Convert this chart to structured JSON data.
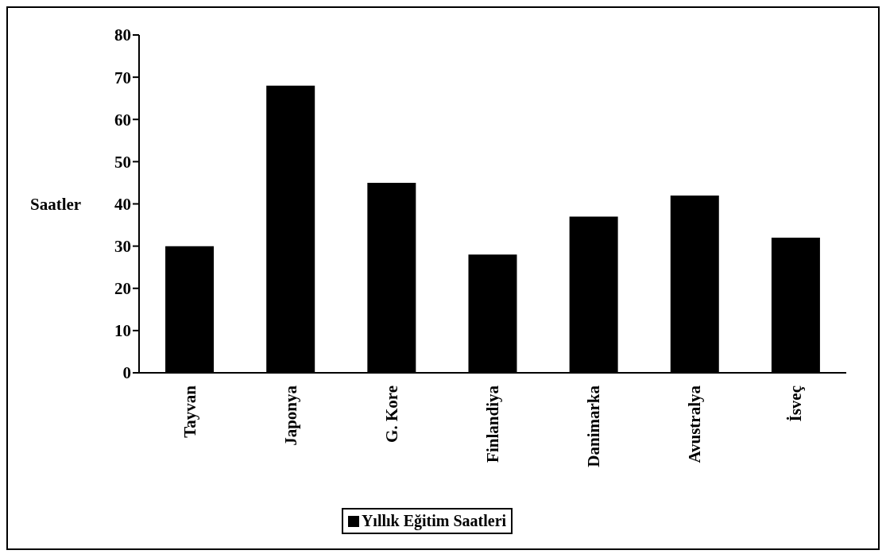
{
  "chart_data": {
    "type": "bar",
    "ylabel": "Saatler",
    "categories": [
      "Tayvan",
      "Japonya",
      "G. Kore",
      "Finlandiya",
      "Danimarka",
      "Avustralya",
      "İsveç"
    ],
    "series": [
      {
        "name": "Yıllık Eğitim Saatleri",
        "color": "#000000",
        "values": [
          30,
          68,
          45,
          28,
          37,
          42,
          32
        ]
      }
    ],
    "ylim": [
      0,
      80
    ],
    "yticks": [
      0,
      10,
      20,
      30,
      40,
      50,
      60,
      70,
      80
    ],
    "grid": false,
    "legend": "bottom"
  }
}
